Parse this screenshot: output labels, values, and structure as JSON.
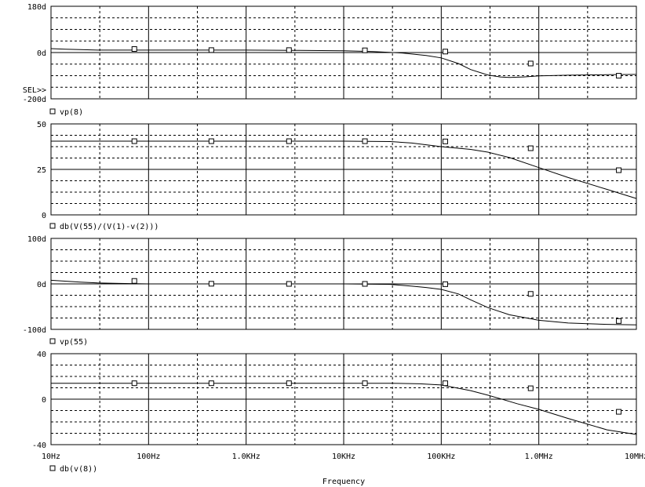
{
  "chart_data": [
    {
      "type": "line",
      "yticks": [
        "180d",
        "0d",
        "-200d"
      ],
      "ylim": [
        -200,
        180
      ],
      "xscale": "log",
      "series": [
        {
          "name": "vp(8)",
          "legend_label": "vp(8)",
          "x": [
            10,
            14,
            20,
            30,
            40,
            60,
            100,
            200,
            1000,
            3000,
            10000,
            20000,
            40000,
            70000,
            100000,
            150000,
            200000,
            300000,
            400000,
            500000,
            700000,
            1000000,
            2000000,
            5000000,
            10000000
          ],
          "y": [
            6,
            4,
            2,
            0,
            0,
            0,
            0,
            0,
            0,
            -1,
            -3,
            -6,
            -12,
            -22,
            -32,
            -55,
            -80,
            -102,
            -110,
            -112,
            -110,
            -106,
            -103,
            -101,
            -100
          ]
        }
      ],
      "sel_marker": "SEL>>"
    },
    {
      "type": "line",
      "yticks": [
        "50",
        "25",
        "0"
      ],
      "ylim": [
        0,
        50
      ],
      "xscale": "log",
      "series": [
        {
          "name": "db(V(55)/(V(1)-v(2)))",
          "legend_label": "db(V(55)/(V(1)-v(2)))",
          "x": [
            10,
            100,
            1000,
            10000,
            30000,
            50000,
            100000,
            200000,
            300000,
            500000,
            1000000,
            2000000,
            5000000,
            10000000
          ],
          "y": [
            40.5,
            40.5,
            40.5,
            40.5,
            40.3,
            39.5,
            37.5,
            36,
            34.5,
            31.5,
            26,
            20.5,
            14,
            9
          ]
        }
      ]
    },
    {
      "type": "line",
      "yticks": [
        "100d",
        "0d",
        "-100d"
      ],
      "ylim": [
        -100,
        100
      ],
      "xscale": "log",
      "series": [
        {
          "name": "vp(55)",
          "legend_label": "vp(55)",
          "x": [
            10,
            20,
            30,
            50,
            100,
            1000,
            10000,
            30000,
            50000,
            70000,
            100000,
            150000,
            200000,
            300000,
            500000,
            1000000,
            2000000,
            5000000,
            10000000
          ],
          "y": [
            8,
            4,
            2,
            1,
            0,
            0,
            0,
            -1,
            -5,
            -8,
            -12,
            -22,
            -35,
            -52,
            -68,
            -80,
            -86,
            -89,
            -90
          ]
        }
      ]
    },
    {
      "type": "line",
      "yticks": [
        "40",
        "0",
        "-40"
      ],
      "ylim": [
        -40,
        40
      ],
      "xscale": "log",
      "xticks": [
        "10Hz",
        "100Hz",
        "1.0KHz",
        "10KHz",
        "100KHz",
        "1.0MHz",
        "10MHz"
      ],
      "xticks_values": [
        10,
        100,
        1000,
        10000,
        100000,
        1000000,
        10000000
      ],
      "xlabel": "Frequency",
      "series": [
        {
          "name": "db(v(8))",
          "legend_label": "db(v(8))",
          "x": [
            10,
            100,
            1000,
            10000,
            30000,
            60000,
            100000,
            200000,
            300000,
            400000,
            600000,
            1000000,
            2000000,
            5000000,
            10000000
          ],
          "y": [
            14,
            14,
            14,
            14,
            14,
            13.5,
            12.5,
            7.5,
            3.5,
            0.5,
            -4,
            -9,
            -17,
            -27,
            -31
          ]
        }
      ]
    }
  ]
}
